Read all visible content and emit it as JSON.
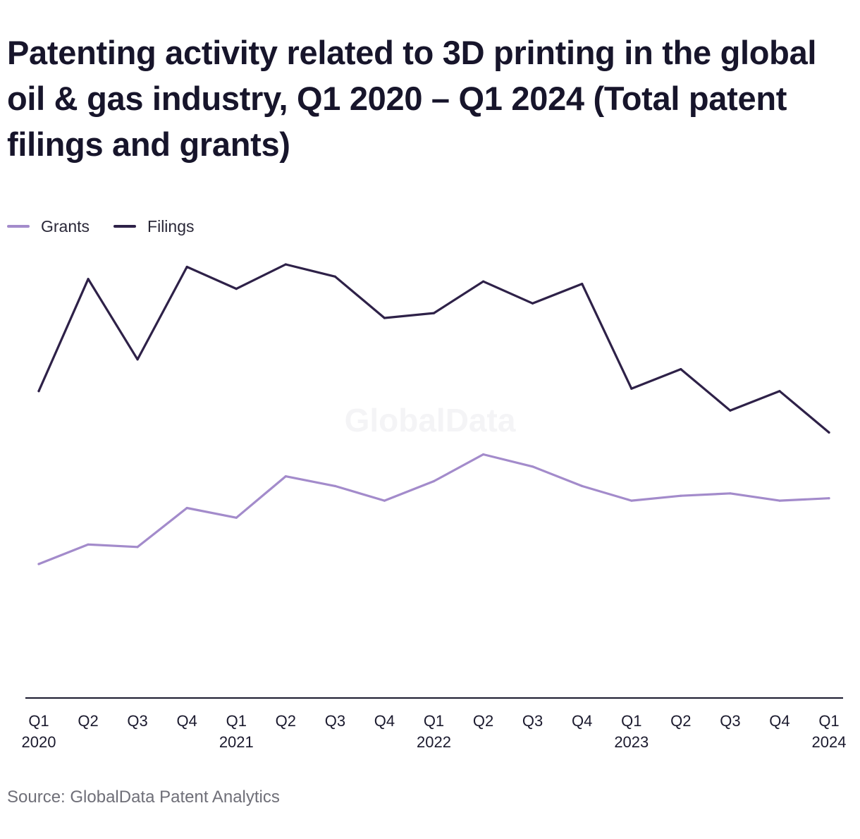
{
  "title": "Patenting activity related to 3D printing in the global oil & gas industry, Q1 2020 – Q1 2024 (Total patent filings and grants)",
  "source": "Source: GlobalData Patent Analytics",
  "watermark": "GlobalData",
  "colors": {
    "grants": "#a38bcb",
    "filings": "#2e2148",
    "axis": "#1b1a2e",
    "watermark": "#f4f4f6"
  },
  "legend": [
    {
      "label": "Grants",
      "color": "#a38bcb"
    },
    {
      "label": "Filings",
      "color": "#2e2148"
    }
  ],
  "chart_data": {
    "type": "line",
    "title": "Patenting activity related to 3D printing in the global oil & gas industry, Q1 2020 – Q1 2024 (Total patent filings and grants)",
    "xlabel": "",
    "ylabel": "",
    "categories": [
      {
        "q": "Q1",
        "year": "2020"
      },
      {
        "q": "Q2",
        "year": ""
      },
      {
        "q": "Q3",
        "year": ""
      },
      {
        "q": "Q4",
        "year": ""
      },
      {
        "q": "Q1",
        "year": "2021"
      },
      {
        "q": "Q2",
        "year": ""
      },
      {
        "q": "Q3",
        "year": ""
      },
      {
        "q": "Q4",
        "year": ""
      },
      {
        "q": "Q1",
        "year": "2022"
      },
      {
        "q": "Q2",
        "year": ""
      },
      {
        "q": "Q3",
        "year": ""
      },
      {
        "q": "Q4",
        "year": ""
      },
      {
        "q": "Q1",
        "year": "2023"
      },
      {
        "q": "Q2",
        "year": ""
      },
      {
        "q": "Q3",
        "year": ""
      },
      {
        "q": "Q4",
        "year": ""
      },
      {
        "q": "Q1",
        "year": "2024"
      }
    ],
    "ylim": [
      0,
      100
    ],
    "grid": false,
    "legend_position": "top-left",
    "series": [
      {
        "name": "Grants",
        "color": "#a38bcb",
        "values": [
          27.5,
          31.5,
          31,
          39,
          37,
          45.5,
          43.5,
          40.5,
          44.5,
          50,
          47.5,
          43.5,
          40.5,
          41.5,
          42,
          40.5,
          41
        ]
      },
      {
        "name": "Filings",
        "color": "#2e2148",
        "values": [
          63,
          86,
          69.5,
          88.5,
          84,
          89,
          86.5,
          78,
          79,
          85.5,
          81,
          85,
          63.5,
          67.5,
          59,
          63,
          54.5
        ]
      }
    ]
  }
}
